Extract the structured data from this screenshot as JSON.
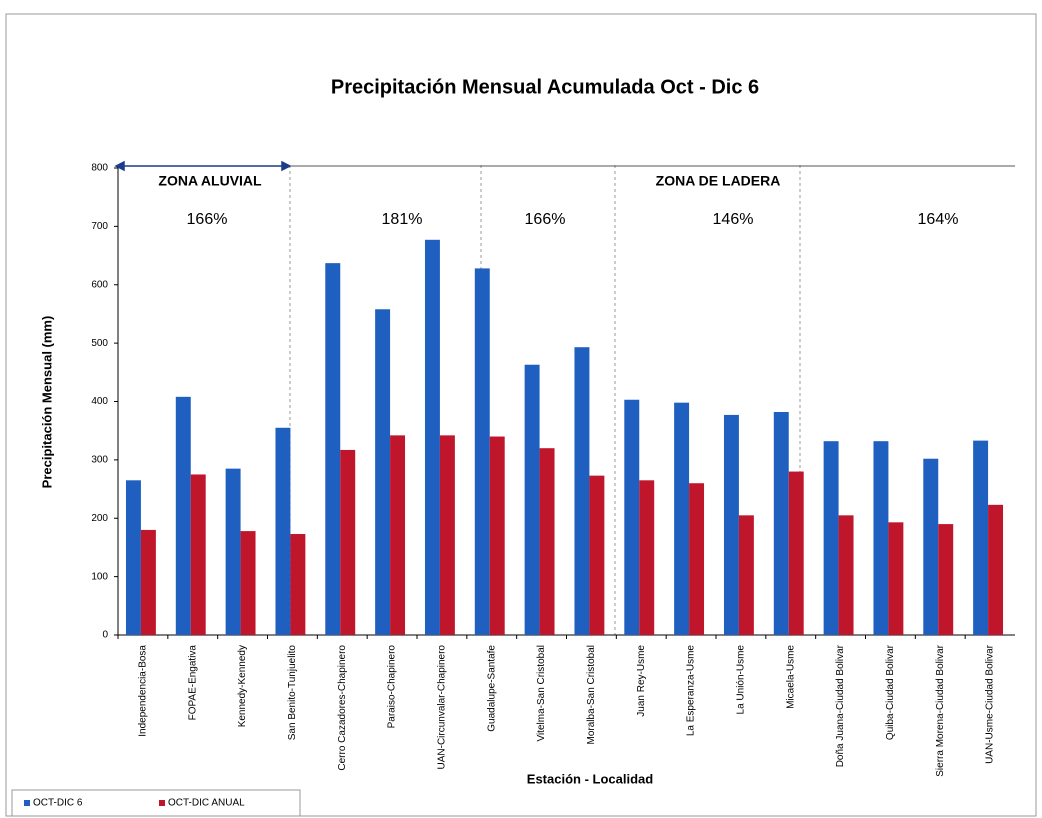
{
  "chart_data": {
    "type": "bar",
    "title": "Precipitación Mensual Acumulada Oct - Dic 6",
    "y_label": "Precipitación Mensual (mm)",
    "x_label": "Estación - Localidad",
    "categories": [
      "Independencia-Bosa",
      "FOPAE-Engativa",
      "Kennedy-Kennedy",
      "San Benito-Tunjuelito",
      "Cerro Cazadores-Chapinero",
      "Paraiso-Chapinero",
      "UAN-Circunvalar-Chapinero",
      "Guadalupe-Santafe",
      "Vitelma-San Cristobal",
      "Moralba-San Cristobal",
      "Juan Rey-Usme",
      "La Esperanza-Usme",
      "La Unión-Usme",
      "Micaela-Usme",
      "Doña Juana-Ciudad Bolivar",
      "Quiba-Ciudad Bolivar",
      "Sierra Morena-Ciudad Bolivar",
      "UAN-Usme-Ciudad Bolivar"
    ],
    "series": [
      {
        "name": "OCT-DIC 6",
        "color": "#1f5fbf",
        "values": [
          265,
          408,
          285,
          355,
          637,
          558,
          677,
          628,
          463,
          493,
          403,
          398,
          377,
          382,
          332,
          332,
          302,
          333
        ]
      },
      {
        "name": "OCT-DIC ANUAL",
        "color": "#c0162b",
        "values": [
          180,
          275,
          178,
          173,
          317,
          342,
          342,
          340,
          320,
          273,
          265,
          260,
          205,
          280,
          205,
          193,
          190,
          223
        ]
      }
    ],
    "ylim": [
      0,
      800
    ],
    "yticks": [
      0,
      100,
      200,
      300,
      400,
      500,
      600,
      700,
      800
    ],
    "zones": [
      "ZONA ALUVIAL",
      "ZONA DE LADERA"
    ],
    "annotations": [
      "166%",
      "181%",
      "166%",
      "146%",
      "164%"
    ],
    "legend": "bottom-left"
  }
}
